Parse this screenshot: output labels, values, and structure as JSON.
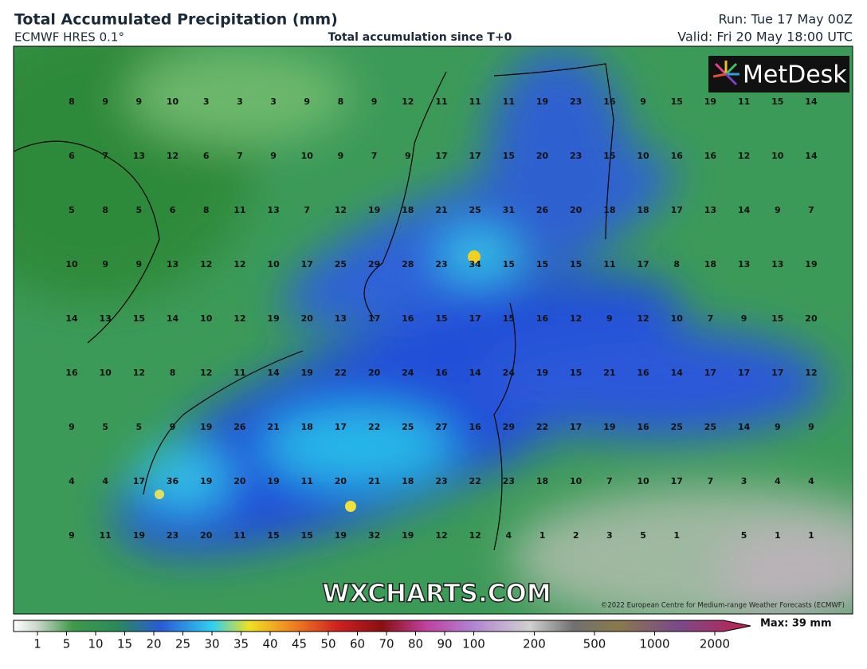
{
  "header": {
    "title": "Total Accumulated Precipitation (mm)",
    "model": "ECMWF HRES 0.1°",
    "subtitle": "Total accumulation since T+0",
    "run": "Run: Tue 17 May 00Z",
    "valid": "Valid: Fri 20 May 18:00 UTC"
  },
  "logo": "MetDesk",
  "watermark": "WXCHARTS.COM",
  "copyright": "©2022 European Centre for Medium-range Weather Forecasts (ECMWF)",
  "grid_values": [
    [
      8,
      9,
      9,
      10,
      3,
      3,
      3,
      9,
      8,
      9,
      12,
      11,
      11,
      11,
      19,
      23,
      16,
      9,
      15,
      19,
      11,
      15,
      14
    ],
    [
      6,
      7,
      13,
      12,
      6,
      7,
      9,
      10,
      9,
      7,
      9,
      17,
      17,
      15,
      20,
      23,
      15,
      10,
      16,
      16,
      12,
      10,
      14
    ],
    [
      5,
      8,
      5,
      6,
      8,
      11,
      13,
      7,
      12,
      19,
      18,
      21,
      25,
      31,
      26,
      20,
      18,
      18,
      17,
      13,
      14,
      9,
      7
    ],
    [
      10,
      9,
      9,
      13,
      12,
      12,
      10,
      17,
      25,
      29,
      28,
      23,
      34,
      15,
      15,
      15,
      11,
      17,
      8,
      18,
      13,
      13,
      19
    ],
    [
      14,
      13,
      15,
      14,
      10,
      12,
      19,
      20,
      13,
      17,
      16,
      15,
      17,
      15,
      16,
      12,
      9,
      12,
      10,
      7,
      9,
      15,
      20
    ],
    [
      16,
      10,
      12,
      8,
      12,
      11,
      14,
      19,
      22,
      20,
      24,
      16,
      14,
      24,
      19,
      15,
      21,
      16,
      14,
      17,
      17,
      17,
      12
    ],
    [
      9,
      5,
      5,
      9,
      19,
      26,
      21,
      18,
      17,
      22,
      25,
      27,
      16,
      29,
      22,
      17,
      19,
      16,
      25,
      25,
      14,
      9,
      9
    ],
    [
      4,
      4,
      17,
      36,
      19,
      20,
      19,
      11,
      20,
      21,
      18,
      23,
      22,
      23,
      18,
      10,
      7,
      10,
      17,
      7,
      3,
      4,
      4
    ],
    [
      9,
      11,
      19,
      23,
      20,
      11,
      15,
      15,
      19,
      32,
      19,
      12,
      12,
      4,
      1,
      2,
      3,
      5,
      1,
      null,
      5,
      1,
      1
    ]
  ],
  "legend": {
    "ticks": [
      1,
      5,
      10,
      15,
      20,
      25,
      30,
      35,
      40,
      45,
      50,
      60,
      70,
      80,
      90,
      100,
      200,
      500,
      1000,
      2000
    ],
    "max": "Max: 39 mm"
  }
}
